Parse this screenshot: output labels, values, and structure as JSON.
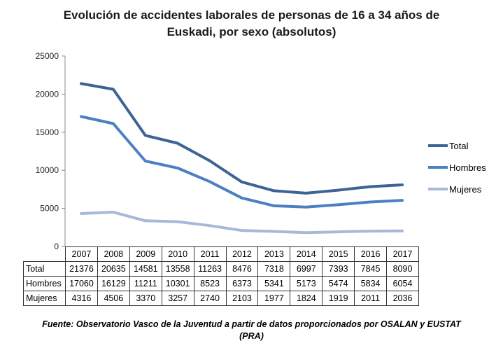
{
  "chart_data": {
    "type": "line",
    "title_lines": [
      "Evolución de accidentes laborales de personas  de 16 a 34 años de",
      "Euskadi, por sexo (absolutos)"
    ],
    "categories": [
      "2007",
      "2008",
      "2009",
      "2010",
      "2011",
      "2012",
      "2013",
      "2014",
      "2015",
      "2016",
      "2017"
    ],
    "series": [
      {
        "name": "Total",
        "color": "#3d6494",
        "values": [
          21376,
          20635,
          14581,
          13558,
          11263,
          8476,
          7318,
          6997,
          7393,
          7845,
          8090
        ]
      },
      {
        "name": "Hombres",
        "color": "#4d7fc3",
        "values": [
          17060,
          16129,
          11211,
          10301,
          8523,
          6373,
          5341,
          5173,
          5474,
          5834,
          6054
        ]
      },
      {
        "name": "Mujeres",
        "color": "#a6b9d9",
        "values": [
          4316,
          4506,
          3370,
          3257,
          2740,
          2103,
          1977,
          1824,
          1919,
          2011,
          2036
        ]
      }
    ],
    "ylim": [
      0,
      25000
    ],
    "yticks": [
      "0",
      "5000",
      "10000",
      "15000",
      "20000",
      "25000"
    ],
    "grid": false,
    "legend_position": "right",
    "data_table": true,
    "source_lines": [
      "Fuente: Observatorio Vasco de la Juventud a partir de datos proporcionados por OSALAN y EUSTAT",
      "(PRA)"
    ]
  }
}
